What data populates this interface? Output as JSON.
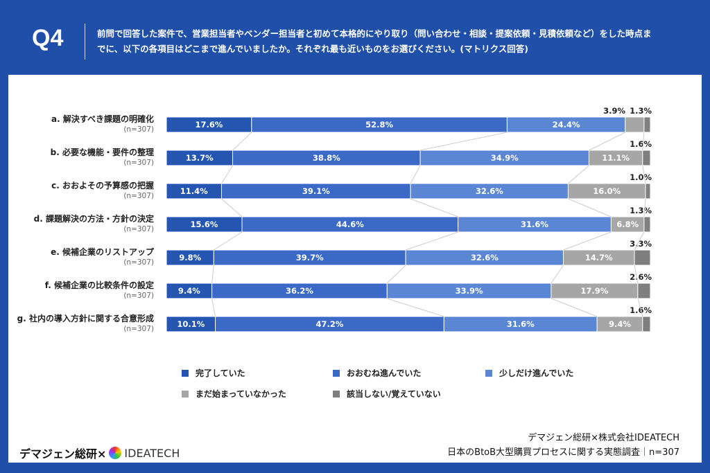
{
  "header": {
    "q": "Q4",
    "question": "前問で回答した案件で、営業担当者やベンダー担当者と初めて本格的にやり取り（問い合わせ・相談・提案依頼・見積依頼など）をした時点までに、以下の各項目はどこまで進んでいましたか。それぞれ最も近いものをお選びください。(マトリクス回答)"
  },
  "chart_data": {
    "type": "bar",
    "stacked": true,
    "orientation": "horizontal",
    "xlim": [
      0,
      100
    ],
    "unit": "%",
    "categories": [
      "a. 解決すべき課題の明確化",
      "b. 必要な機能・要件の整理",
      "c. おおよその予算感の把握",
      "d. 課題解決の方法・方針の決定",
      "e. 候補企業のリストアップ",
      "f. 候補企業の比較条件の設定",
      "g. 社内の導入方針に関する合意形成"
    ],
    "n_label": "(n=307)",
    "series": [
      {
        "name": "完了していた",
        "color": "#2455b0",
        "values": [
          17.6,
          13.7,
          11.4,
          15.6,
          9.8,
          9.4,
          10.1
        ]
      },
      {
        "name": "おおむね進んでいた",
        "color": "#3b69c6",
        "values": [
          52.8,
          38.8,
          39.1,
          44.6,
          39.7,
          36.2,
          47.2
        ]
      },
      {
        "name": "少しだけ進んでいた",
        "color": "#5a86d3",
        "values": [
          24.4,
          34.9,
          32.6,
          31.6,
          32.6,
          33.9,
          31.6
        ]
      },
      {
        "name": "まだ始まっていなかった",
        "color": "#a6a6a6",
        "values": [
          3.9,
          11.1,
          16.0,
          6.8,
          14.7,
          17.9,
          9.4
        ]
      },
      {
        "name": "該当しない/覚えていない",
        "color": "#7f7f7f",
        "values": [
          1.3,
          1.6,
          1.0,
          1.3,
          3.3,
          2.6,
          1.6
        ]
      }
    ]
  },
  "footer": {
    "logo_left": "デマジェン総研×",
    "logo_right": "IDEATECH",
    "source_line1": "デマジェン総研×株式会社IDEATECH",
    "source_line2": "日本のBtoB大型購買プロセスに関する実態調査｜n=307"
  }
}
